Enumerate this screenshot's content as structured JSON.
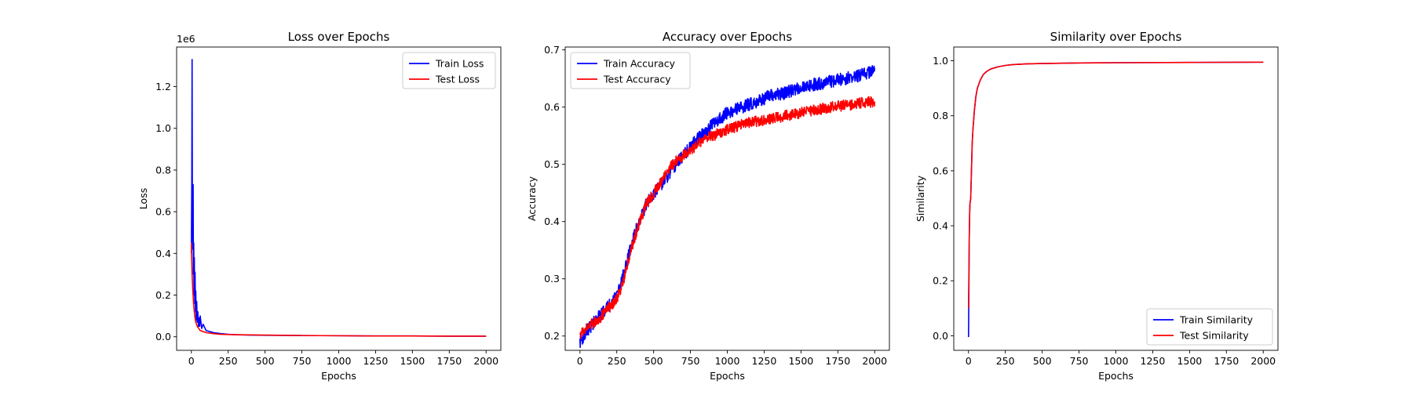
{
  "figure": {
    "colors": {
      "train": "#0000ff",
      "test": "#ff0000",
      "axes": "#000000",
      "background": "#ffffff"
    }
  },
  "chart_data": [
    {
      "type": "line",
      "title": "Loss over Epochs",
      "xlabel": "Epochs",
      "ylabel": "Loss",
      "offset_text": "1e6",
      "xlim": [
        -100,
        2100
      ],
      "ylim": [
        -0.065,
        1.39
      ],
      "xticks": [
        0,
        250,
        500,
        750,
        1000,
        1250,
        1500,
        1750,
        2000
      ],
      "xtick_labels": [
        "0",
        "250",
        "500",
        "750",
        "1000",
        "1250",
        "1500",
        "1750",
        "2000"
      ],
      "yticks": [
        0.0,
        0.2,
        0.4,
        0.6,
        0.8,
        1.0,
        1.2
      ],
      "ytick_labels": [
        "0.0",
        "0.2",
        "0.4",
        "0.6",
        "0.8",
        "1.0",
        "1.2"
      ],
      "grid": false,
      "legend_loc": "upper right",
      "series": [
        {
          "name": "Train Loss",
          "color": "#0000ff",
          "x": [
            0,
            3,
            5,
            7,
            8,
            10,
            12,
            14,
            16,
            18,
            20,
            23,
            25,
            28,
            30,
            33,
            36,
            40,
            44,
            48,
            52,
            56,
            60,
            70,
            80,
            100,
            125,
            150,
            200,
            250,
            300,
            400,
            500,
            750,
            1000,
            1250,
            1500,
            1750,
            2000
          ],
          "y": [
            0.4,
            0.75,
            1.33,
            0.55,
            0.7,
            0.42,
            0.73,
            0.3,
            0.45,
            0.2,
            0.38,
            0.16,
            0.31,
            0.12,
            0.22,
            0.08,
            0.17,
            0.07,
            0.12,
            0.05,
            0.09,
            0.05,
            0.1,
            0.04,
            0.06,
            0.03,
            0.025,
            0.02,
            0.015,
            0.012,
            0.01,
            0.008,
            0.007,
            0.006,
            0.005,
            0.004,
            0.004,
            0.003,
            0.003
          ]
        },
        {
          "name": "Test Loss",
          "color": "#ff0000",
          "x": [
            0,
            5,
            10,
            15,
            20,
            25,
            30,
            40,
            50,
            60,
            80,
            100,
            150,
            200,
            300,
            500,
            750,
            1000,
            1250,
            1500,
            1750,
            2000
          ],
          "y": [
            0.45,
            0.3,
            0.22,
            0.16,
            0.12,
            0.09,
            0.07,
            0.05,
            0.04,
            0.03,
            0.025,
            0.02,
            0.015,
            0.012,
            0.01,
            0.008,
            0.006,
            0.005,
            0.004,
            0.004,
            0.003,
            0.003
          ]
        }
      ]
    },
    {
      "type": "line",
      "title": "Accuracy over Epochs",
      "xlabel": "Epochs",
      "ylabel": "Accuracy",
      "xlim": [
        -100,
        2100
      ],
      "ylim": [
        0.175,
        0.705
      ],
      "xticks": [
        0,
        250,
        500,
        750,
        1000,
        1250,
        1500,
        1750,
        2000
      ],
      "xtick_labels": [
        "0",
        "250",
        "500",
        "750",
        "1000",
        "1250",
        "1500",
        "1750",
        "2000"
      ],
      "yticks": [
        0.2,
        0.3,
        0.4,
        0.5,
        0.6,
        0.7
      ],
      "ytick_labels": [
        "0.2",
        "0.3",
        "0.4",
        "0.5",
        "0.6",
        "0.7"
      ],
      "grid": false,
      "legend_loc": "upper left",
      "series": [
        {
          "name": "Train Accuracy",
          "color": "#0000ff",
          "x": [
            0,
            50,
            100,
            150,
            200,
            250,
            300,
            350,
            400,
            450,
            500,
            550,
            600,
            650,
            700,
            750,
            800,
            850,
            900,
            950,
            1000,
            1100,
            1200,
            1300,
            1400,
            1500,
            1600,
            1700,
            1800,
            1900,
            2000
          ],
          "y": [
            0.19,
            0.21,
            0.225,
            0.24,
            0.255,
            0.275,
            0.31,
            0.36,
            0.4,
            0.43,
            0.45,
            0.465,
            0.48,
            0.5,
            0.515,
            0.53,
            0.545,
            0.555,
            0.57,
            0.58,
            0.59,
            0.6,
            0.61,
            0.62,
            0.625,
            0.635,
            0.64,
            0.645,
            0.65,
            0.655,
            0.665
          ],
          "noise": 0.007
        },
        {
          "name": "Test Accuracy",
          "color": "#ff0000",
          "x": [
            0,
            50,
            100,
            150,
            200,
            250,
            300,
            350,
            400,
            450,
            500,
            550,
            600,
            650,
            700,
            750,
            800,
            850,
            900,
            950,
            1000,
            1100,
            1200,
            1300,
            1400,
            1500,
            1600,
            1700,
            1800,
            1900,
            2000
          ],
          "y": [
            0.2,
            0.215,
            0.225,
            0.235,
            0.25,
            0.265,
            0.3,
            0.355,
            0.395,
            0.43,
            0.45,
            0.47,
            0.49,
            0.505,
            0.515,
            0.525,
            0.535,
            0.545,
            0.55,
            0.555,
            0.56,
            0.57,
            0.575,
            0.58,
            0.585,
            0.59,
            0.595,
            0.6,
            0.603,
            0.607,
            0.61
          ],
          "noise": 0.006
        }
      ]
    },
    {
      "type": "line",
      "title": "Similarity over Epochs",
      "xlabel": "Epochs",
      "ylabel": "Similarity",
      "xlim": [
        -100,
        2100
      ],
      "ylim": [
        -0.053,
        1.05
      ],
      "xticks": [
        0,
        250,
        500,
        750,
        1000,
        1250,
        1500,
        1750,
        2000
      ],
      "xtick_labels": [
        "0",
        "250",
        "500",
        "750",
        "1000",
        "1250",
        "1500",
        "1750",
        "2000"
      ],
      "yticks": [
        0.0,
        0.2,
        0.4,
        0.6,
        0.8,
        1.0
      ],
      "ytick_labels": [
        "0.0",
        "0.2",
        "0.4",
        "0.6",
        "0.8",
        "1.0"
      ],
      "grid": false,
      "legend_loc": "lower right",
      "series": [
        {
          "name": "Train Similarity",
          "color": "#0000ff",
          "x": [
            0,
            1,
            3,
            5,
            8,
            10,
            15,
            20,
            25,
            30,
            40,
            50,
            60,
            80,
            100,
            125,
            150,
            200,
            250,
            300,
            400,
            500,
            750,
            1000,
            1500,
            2000
          ],
          "y": [
            -0.005,
            0.05,
            0.2,
            0.35,
            0.45,
            0.48,
            0.5,
            0.6,
            0.7,
            0.75,
            0.82,
            0.87,
            0.9,
            0.93,
            0.95,
            0.962,
            0.97,
            0.978,
            0.983,
            0.986,
            0.989,
            0.99,
            0.992,
            0.993,
            0.994,
            0.995
          ]
        },
        {
          "name": "Test Similarity",
          "color": "#ff0000",
          "x": [
            0,
            3,
            5,
            8,
            10,
            15,
            20,
            25,
            30,
            40,
            50,
            60,
            80,
            100,
            125,
            150,
            200,
            250,
            300,
            400,
            500,
            750,
            1000,
            1500,
            2000
          ],
          "y": [
            0.1,
            0.25,
            0.36,
            0.45,
            0.48,
            0.5,
            0.6,
            0.7,
            0.75,
            0.82,
            0.87,
            0.9,
            0.93,
            0.95,
            0.962,
            0.97,
            0.978,
            0.983,
            0.986,
            0.989,
            0.99,
            0.992,
            0.993,
            0.994,
            0.995
          ]
        }
      ]
    }
  ]
}
